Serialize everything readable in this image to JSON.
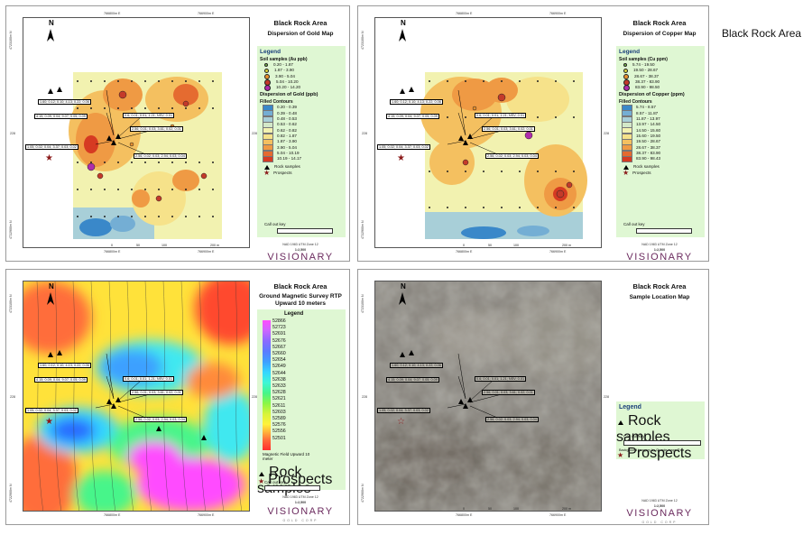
{
  "page_title": "Black Rock Area",
  "common": {
    "coord_top_left": "766800m E",
    "coord_top_right": "766900m E",
    "coord_bottom_left": "766800m E",
    "coord_bottom_right": "766900m E",
    "coord_side_upper": "4723100m N",
    "coord_side_lower": "4722900m N",
    "coord_mid": "228",
    "north": "N",
    "scale_ticks": [
      "0",
      "50",
      "100",
      "",
      "200 m"
    ],
    "nad": "NAD 1983 UTM Zone 12",
    "scale_ratio": "1:2,500",
    "logo": "VISIONARY",
    "logo_sub": "GOLD CORP",
    "rock_samples": "Rock samples",
    "prospects": "Prospects",
    "call_out_key": "Call out key",
    "callouts": [
      "1.60; 0.12; 0.10; 4.13; 0.22; 0.06",
      "4.15; 0.09; 0.04; 9.07; 0.05; 0.09",
      "0.6; 0.01; 0.01; 1.21; NSV; 0.01",
      "2.56; 0.01; 0.03; 3.61; 0.02; 0.01",
      "1.05; 0.02; 0.04; 3.37; 0.03; 0.02",
      "2.56; 0.02; 0.03; 2.94; 0.03; 0.04"
    ]
  },
  "panels": {
    "gold": {
      "title": "Black Rock Area",
      "subtitle": "Dispersion of Gold Map",
      "legend_title": "Legend",
      "soil_title": "Soil samples (Au ppb)",
      "soil_classes": [
        "0.20 - 1.87",
        "1.87 - 3.90",
        "3.90 - 5.04",
        "5.04 - 10.20",
        "10.20 - 14.20"
      ],
      "soil_colors": [
        "#7ec24f",
        "#d9d13a",
        "#e8902e",
        "#c43a2a",
        "#b02dab"
      ],
      "contour_title": "Dispersion of Gold (ppb)",
      "contour_sub": "Filled Contours",
      "contour_classes": [
        "0.20 - 0.39",
        "0.39 - 0.48",
        "0.48 - 0.53",
        "0.53 - 0.62",
        "0.62 - 0.82",
        "0.82 - 1.87",
        "1.87 - 3.90",
        "3.90 - 5.04",
        "5.04 - 10.19",
        "10.19 - 14.17"
      ],
      "contour_colors": [
        "#3a88c9",
        "#74aed4",
        "#a8cfd8",
        "#d3e8c8",
        "#f2f2b0",
        "#f6e28a",
        "#f4c060",
        "#ef9a44",
        "#e56b30",
        "#d63a22"
      ]
    },
    "copper": {
      "title": "Black Rock Area",
      "subtitle": "Dispersion of Copper Map",
      "legend_title": "Legend",
      "soil_title": "Soil samples (Cu ppm)",
      "soil_classes": [
        "5.74 - 19.50",
        "19.50 - 28.67",
        "28.67 - 38.37",
        "38.37 - 83.90",
        "83.90 - 98.50"
      ],
      "soil_colors": [
        "#7ec24f",
        "#d9d13a",
        "#e8902e",
        "#c43a2a",
        "#b02dab"
      ],
      "contour_title": "Dispersion of Copper (ppm)",
      "contour_sub": "Filled Contours",
      "contour_classes": [
        "5.74 - 8.57",
        "8.57 - 11.87",
        "11.87 - 13.97",
        "13.97 - 14.50",
        "14.50 - 15.60",
        "15.60 - 19.50",
        "19.50 - 28.67",
        "28.67 - 38.37",
        "38.37 - 83.90",
        "83.90 - 98.43"
      ],
      "contour_colors": [
        "#3a88c9",
        "#74aed4",
        "#a8cfd8",
        "#d3e8c8",
        "#f2f2b0",
        "#f6e28a",
        "#f4c060",
        "#ef9a44",
        "#e56b30",
        "#d63a22"
      ]
    },
    "magnetic": {
      "title": "Black Rock Area",
      "subtitle": "Ground Magnetic Survey RTP Upward 10 meters",
      "legend_title": "Legend",
      "values": [
        "52866",
        "52723",
        "52691",
        "52676",
        "52667",
        "52660",
        "52654",
        "52649",
        "52644",
        "52638",
        "52633",
        "52628",
        "52621",
        "52611",
        "52603",
        "52589",
        "52576",
        "52556",
        "52501"
      ],
      "field_label": "Magnetic Field Upward 10 meter"
    },
    "location": {
      "title": "Black Rock Area",
      "subtitle": "Sample Location Map",
      "legend_title": "Legend",
      "imagery": "Background Imagery by Google maps ®"
    }
  }
}
